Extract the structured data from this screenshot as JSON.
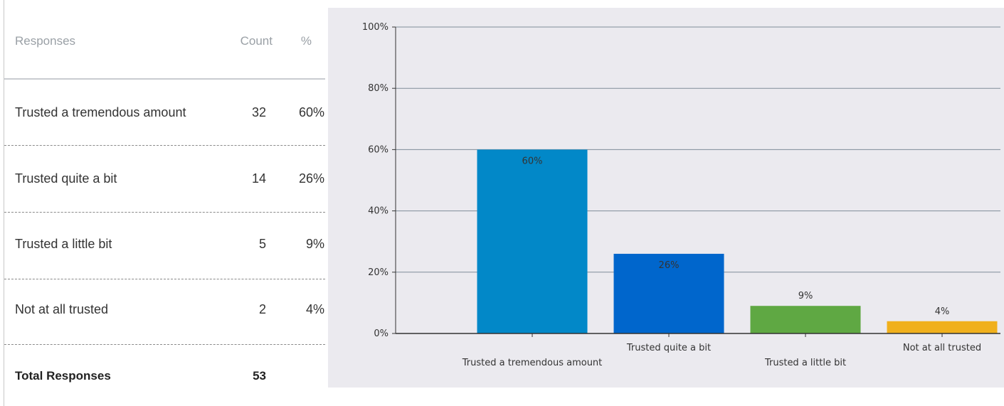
{
  "table": {
    "headers": {
      "responses": "Responses",
      "count": "Count",
      "percent": "%"
    },
    "rows": [
      {
        "label": "Trusted a tremendous amount",
        "count": "32",
        "percent": "60%"
      },
      {
        "label": "Trusted quite a bit",
        "count": "14",
        "percent": "26%"
      },
      {
        "label": "Trusted a little bit",
        "count": "5",
        "percent": "9%"
      },
      {
        "label": "Not at all trusted",
        "count": "2",
        "percent": "4%"
      }
    ],
    "total": {
      "label": "Total Responses",
      "count": "53"
    }
  },
  "chart_data": {
    "type": "bar",
    "categories": [
      "Trusted a tremendous amount",
      "Trusted quite a bit",
      "Trusted a little bit",
      "Not at all trusted"
    ],
    "values": [
      60,
      26,
      9,
      4
    ],
    "data_labels": [
      "60%",
      "26%",
      "9%",
      "4%"
    ],
    "colors": [
      "#0288c8",
      "#0066cc",
      "#5fa843",
      "#f0b01c"
    ],
    "label_colors": [
      "#222222",
      "#ffffff",
      "#333333",
      "#333333"
    ],
    "y_ticks": [
      "0%",
      "20%",
      "40%",
      "60%",
      "80%",
      "100%"
    ],
    "ylim": [
      0,
      100
    ],
    "grid": true,
    "title": "",
    "xlabel": "",
    "ylabel": ""
  }
}
